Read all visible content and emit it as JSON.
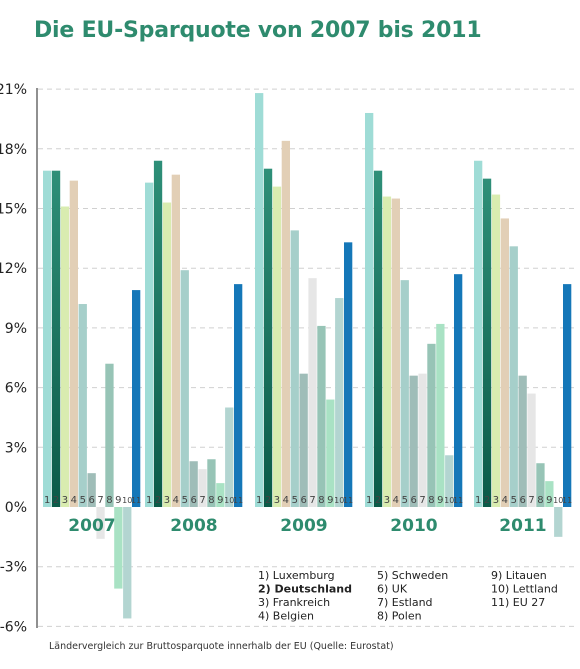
{
  "chart_data": {
    "type": "bar",
    "title": "Die EU-Sparquote von 2007 bis 2011",
    "caption": "Ländervergleich zur Bruttosparquote innerhalb der EU (Quelle: Eurostat)",
    "categories": [
      "2007",
      "2008",
      "2009",
      "2010",
      "2011"
    ],
    "bar_numbers": [
      "1",
      "2",
      "3",
      "4",
      "5",
      "6",
      "7",
      "8",
      "9",
      "10",
      "11"
    ],
    "y_ticks": [
      "-6%",
      "-3%",
      "0%",
      "3%",
      "6%",
      "9%",
      "12%",
      "15%",
      "18%",
      "21%"
    ],
    "y_tick_values": [
      -6,
      -3,
      0,
      3,
      6,
      9,
      12,
      15,
      18,
      21
    ],
    "ylim": [
      -6,
      21
    ],
    "grid": true,
    "series": [
      {
        "name": "1) Luxemburg",
        "color": "#9fdcd6",
        "values": [
          16.9,
          16.3,
          20.8,
          19.8,
          17.4
        ]
      },
      {
        "name": "2) Deutschland",
        "color": "#1c7a66",
        "values": [
          16.9,
          17.4,
          17.0,
          16.9,
          16.5
        ]
      },
      {
        "name": "3) Frankreich",
        "color": "#d9ecb0",
        "values": [
          15.1,
          15.3,
          16.1,
          15.6,
          15.7
        ]
      },
      {
        "name": "4) Belgien",
        "color": "#e2cfb6",
        "values": [
          16.4,
          16.7,
          18.4,
          15.5,
          14.5
        ]
      },
      {
        "name": "5) Schweden",
        "color": "#a6cfca",
        "values": [
          10.2,
          11.9,
          13.9,
          11.4,
          13.1
        ]
      },
      {
        "name": "6) UK",
        "color": "#9fbdb8",
        "values": [
          1.7,
          2.3,
          6.7,
          6.6,
          6.6
        ]
      },
      {
        "name": "7) Estland",
        "color": "#e6e6e6",
        "values": [
          -1.6,
          1.9,
          11.5,
          6.7,
          5.7
        ]
      },
      {
        "name": "8) Polen",
        "color": "#97c4b6",
        "values": [
          7.2,
          2.4,
          9.1,
          8.2,
          2.2
        ]
      },
      {
        "name": "9) Litauen",
        "color": "#a9e2c4",
        "values": [
          -4.1,
          1.2,
          5.4,
          9.2,
          1.3
        ]
      },
      {
        "name": "10) Lettland",
        "color": "#b3d5d1",
        "values": [
          -5.6,
          5.0,
          10.5,
          2.6,
          -1.5
        ]
      },
      {
        "name": "11) EU 27",
        "color": "#1577b8",
        "values": [
          10.9,
          11.2,
          13.3,
          11.7,
          11.2
        ]
      }
    ],
    "legend": {
      "columns": [
        [
          "1)  Luxemburg",
          "2)  Deutschland",
          "3)  Frankreich",
          "4)  Belgien"
        ],
        [
          "5)  Schweden",
          "6)  UK",
          "7)  Estland",
          "8)  Polen"
        ],
        [
          "9)  Litauen",
          "10)  Lettland",
          "11)  EU 27"
        ]
      ],
      "bold_item": "2)  Deutschland"
    },
    "colors": {
      "title": "#2e8b6e",
      "year_label": "#2e8b6e",
      "axis": "#222222",
      "grid": "#d0d0d0"
    }
  }
}
